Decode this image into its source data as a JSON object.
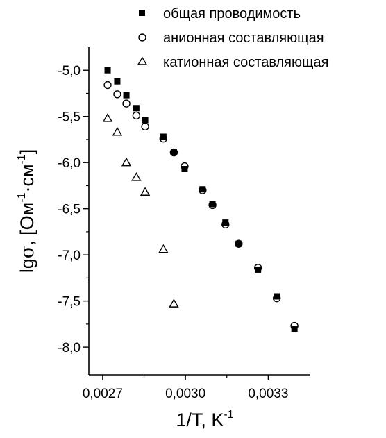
{
  "chart_data": {
    "type": "scatter",
    "title": "",
    "xlabel": {
      "main": "1/T, K",
      "sup": "-1"
    },
    "ylabel": {
      "prefix": "lg",
      "sigma": "σ",
      "mid1": ", [Ом",
      "sup1": "-1",
      "mid2": "·см",
      "sup2": "-1",
      "suffix": "]"
    },
    "xlim": [
      0.00265,
      0.00345
    ],
    "ylim": [
      -8.3,
      -4.75
    ],
    "x_ticks": [
      {
        "value": 0.0027,
        "label": "0,0027"
      },
      {
        "value": 0.003,
        "label": "0,0030"
      },
      {
        "value": 0.0033,
        "label": "0,0033"
      }
    ],
    "x_minor_ticks": [
      0.00285,
      0.00315
    ],
    "y_ticks": [
      {
        "value": -5.0,
        "label": "-5,0"
      },
      {
        "value": -5.5,
        "label": "-5,5"
      },
      {
        "value": -6.0,
        "label": "-6,0"
      },
      {
        "value": -6.5,
        "label": "-6,5"
      },
      {
        "value": -7.0,
        "label": "-7,0"
      },
      {
        "value": -7.5,
        "label": "-7,5"
      },
      {
        "value": -8.0,
        "label": "-8,0"
      }
    ],
    "y_minor_ticks": [
      -5.25,
      -5.75,
      -6.25,
      -6.75,
      -7.25,
      -7.75
    ],
    "grid": false,
    "legend_position": "top-right",
    "series": [
      {
        "name": "общая проводимость",
        "marker": "filled-square",
        "color": "#000000",
        "points": [
          {
            "x": 0.002718,
            "y": -5.0
          },
          {
            "x": 0.002753,
            "y": -5.12
          },
          {
            "x": 0.002786,
            "y": -5.27
          },
          {
            "x": 0.002822,
            "y": -5.41
          },
          {
            "x": 0.002854,
            "y": -5.54
          },
          {
            "x": 0.00292,
            "y": -5.72
          },
          {
            "x": 0.002958,
            "y": -5.89
          },
          {
            "x": 0.002997,
            "y": -6.07
          },
          {
            "x": 0.003062,
            "y": -6.29
          },
          {
            "x": 0.003098,
            "y": -6.45
          },
          {
            "x": 0.003145,
            "y": -6.65
          },
          {
            "x": 0.003193,
            "y": -6.88
          },
          {
            "x": 0.003263,
            "y": -7.16
          },
          {
            "x": 0.003331,
            "y": -7.45
          },
          {
            "x": 0.003395,
            "y": -7.8
          }
        ]
      },
      {
        "name": "анионная составляющая",
        "marker": "open-circle",
        "color": "#000000",
        "points": [
          {
            "x": 0.002718,
            "y": -5.16
          },
          {
            "x": 0.002753,
            "y": -5.26
          },
          {
            "x": 0.002786,
            "y": -5.36
          },
          {
            "x": 0.002822,
            "y": -5.49
          },
          {
            "x": 0.002854,
            "y": -5.61
          },
          {
            "x": 0.00292,
            "y": -5.74
          },
          {
            "x": 0.002958,
            "y": -5.89
          },
          {
            "x": 0.002997,
            "y": -6.04
          },
          {
            "x": 0.003062,
            "y": -6.3
          },
          {
            "x": 0.003098,
            "y": -6.46
          },
          {
            "x": 0.003145,
            "y": -6.67
          },
          {
            "x": 0.003193,
            "y": -6.88
          },
          {
            "x": 0.003263,
            "y": -7.14
          },
          {
            "x": 0.003331,
            "y": -7.47
          },
          {
            "x": 0.003395,
            "y": -7.77
          }
        ]
      },
      {
        "name": "катионная составляющая",
        "marker": "open-triangle",
        "color": "#000000",
        "points": [
          {
            "x": 0.002718,
            "y": -5.52
          },
          {
            "x": 0.002753,
            "y": -5.67
          },
          {
            "x": 0.002786,
            "y": -6.0
          },
          {
            "x": 0.002822,
            "y": -6.16
          },
          {
            "x": 0.002854,
            "y": -6.32
          },
          {
            "x": 0.00292,
            "y": -6.94
          },
          {
            "x": 0.002958,
            "y": -7.53
          }
        ]
      }
    ]
  }
}
